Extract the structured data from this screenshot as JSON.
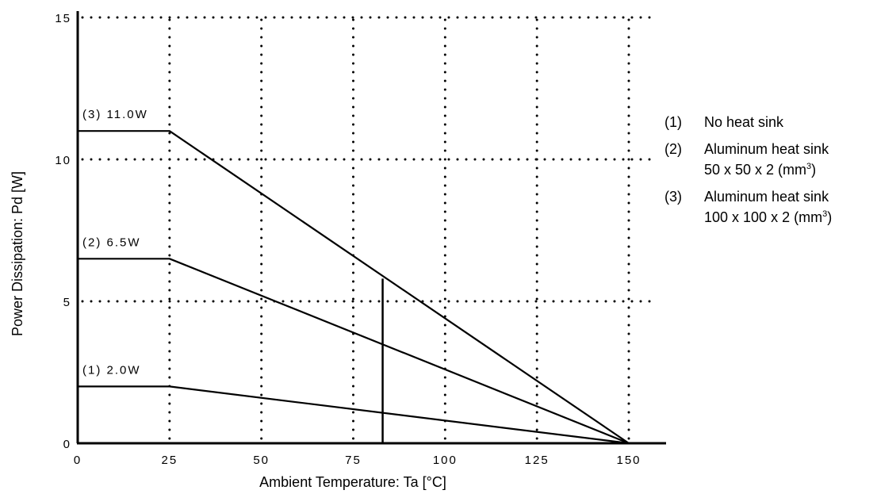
{
  "chart_data": {
    "type": "line",
    "title": "",
    "xlabel": "Ambient Temperature: Ta [°C]",
    "ylabel": "Power Dissipation: Pd [W]",
    "xlim": [
      0,
      150
    ],
    "ylim": [
      0,
      15
    ],
    "xticks": [
      0,
      25,
      50,
      75,
      100,
      125,
      150
    ],
    "xtick_labels": [
      "0",
      "25",
      "50",
      "75",
      "100",
      "125",
      "150"
    ],
    "yticks": [
      0,
      5,
      10,
      15
    ],
    "ytick_labels": [
      "0",
      "5",
      "10",
      "15"
    ],
    "grid": true,
    "grid_style": "dotted",
    "series": [
      {
        "name": "(1) 2.0W",
        "x": [
          0,
          25,
          150
        ],
        "y": [
          2.0,
          2.0,
          0
        ]
      },
      {
        "name": "(2) 6.5W",
        "x": [
          0,
          25,
          150
        ],
        "y": [
          6.5,
          6.5,
          0
        ]
      },
      {
        "name": "(3) 11.0W",
        "x": [
          0,
          25,
          150
        ],
        "y": [
          11.0,
          11.0,
          0
        ]
      }
    ],
    "reference_line": {
      "x": 83,
      "y": [
        0,
        5.8
      ]
    },
    "legend_placement": "right",
    "legend": [
      {
        "num": "(1)",
        "lines": [
          {
            "text": "No heat sink"
          }
        ]
      },
      {
        "num": "(2)",
        "lines": [
          {
            "text": "Aluminum heat sink"
          },
          {
            "text": "50 x 50 x 2 (mm",
            "sup": "3",
            "after": ")"
          }
        ]
      },
      {
        "num": "(3)",
        "lines": [
          {
            "text": "Aluminum heat sink"
          },
          {
            "text": "100 x 100 x 2 (mm",
            "sup": "3",
            "after": ")"
          }
        ]
      }
    ]
  }
}
